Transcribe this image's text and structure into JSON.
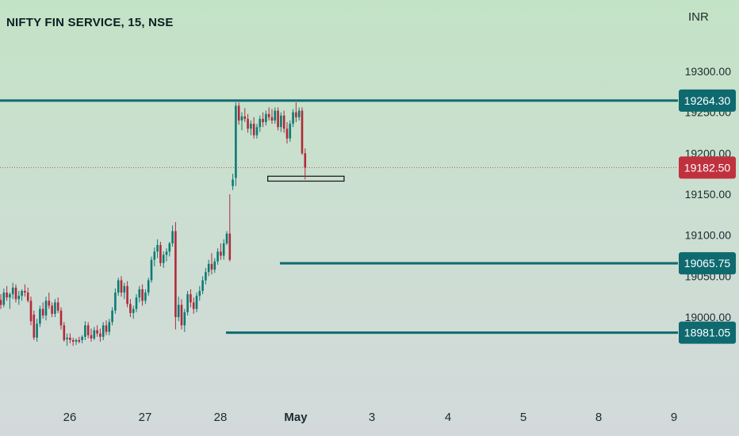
{
  "header": {
    "title": "NIFTY FIN SERVICE, 15, NSE",
    "currency": "INR"
  },
  "colors": {
    "line": "#0e6a6f",
    "up": "#0e7a74",
    "down": "#b02a3a",
    "last_price": "#c0313e"
  },
  "chart_data": {
    "type": "candlestick",
    "title": "NIFTY FIN SERVICE, 15, NSE",
    "ylabel": "INR",
    "ylim": [
      18950,
      19340
    ],
    "y_ticks": [
      "19300.00",
      "19250.00",
      "19200.00",
      "19150.00",
      "19100.00",
      "19050.00",
      "19000.00"
    ],
    "x_ticks": [
      "26",
      "27",
      "28",
      "May",
      "3",
      "4",
      "5",
      "8",
      "9"
    ],
    "last_price": {
      "label": "19182.50",
      "value": 19182.5
    },
    "levels": [
      {
        "label": "19264.30",
        "value": 19264.3
      },
      {
        "label": "19065.75",
        "value": 19065.75
      },
      {
        "label": "18981.05",
        "value": 18981.05
      }
    ],
    "zone": {
      "low": 19166,
      "high": 19172,
      "from_day": 3.62,
      "to_day": 4.63
    },
    "candles": [
      [
        19021,
        19028,
        19010,
        19015
      ],
      [
        19015,
        19035,
        19012,
        19030
      ],
      [
        19030,
        19038,
        19020,
        19024
      ],
      [
        19024,
        19030,
        19010,
        19028
      ],
      [
        19028,
        19042,
        19022,
        19036
      ],
      [
        19036,
        19040,
        19018,
        19022
      ],
      [
        19022,
        19032,
        19015,
        19026
      ],
      [
        19026,
        19034,
        19020,
        19032
      ],
      [
        19032,
        19040,
        19025,
        19030
      ],
      [
        19030,
        19036,
        19018,
        19020
      ],
      [
        19020,
        19025,
        18990,
        18995
      ],
      [
        19003,
        19008,
        18972,
        18975
      ],
      [
        18975,
        18998,
        18970,
        18992
      ],
      [
        18992,
        19014,
        18988,
        19010
      ],
      [
        19010,
        19018,
        18998,
        19002
      ],
      [
        19002,
        19025,
        18996,
        19020
      ],
      [
        19020,
        19030,
        19010,
        19014
      ],
      [
        19014,
        19018,
        19000,
        19004
      ],
      [
        19004,
        19022,
        19000,
        19018
      ],
      [
        19018,
        19024,
        19005,
        19008
      ],
      [
        19008,
        19012,
        18985,
        18990
      ],
      [
        18990,
        18994,
        18970,
        18972
      ],
      [
        18973,
        18980,
        18965,
        18975
      ],
      [
        18975,
        18980,
        18968,
        18972
      ],
      [
        18972,
        18975,
        18965,
        18970
      ],
      [
        18970,
        18974,
        18966,
        18972
      ],
      [
        18972,
        18976,
        18968,
        18970
      ],
      [
        18972,
        18978,
        18968,
        18976
      ],
      [
        18976,
        18995,
        18972,
        18990
      ],
      [
        18990,
        18994,
        18974,
        18978
      ],
      [
        18978,
        18986,
        18970,
        18974
      ],
      [
        18974,
        18988,
        18972,
        18984
      ],
      [
        18984,
        18990,
        18976,
        18980
      ],
      [
        18980,
        18986,
        18970,
        18976
      ],
      [
        18976,
        18994,
        18972,
        18990
      ],
      [
        18990,
        18996,
        18978,
        18982
      ],
      [
        18982,
        18998,
        18978,
        18994
      ],
      [
        18994,
        19012,
        18990,
        19008
      ],
      [
        19008,
        19035,
        19004,
        19030
      ],
      [
        19030,
        19048,
        19026,
        19045
      ],
      [
        19045,
        19050,
        19025,
        19030
      ],
      [
        19030,
        19042,
        19022,
        19038
      ],
      [
        19038,
        19044,
        19012,
        19016
      ],
      [
        19016,
        19022,
        19000,
        19005
      ],
      [
        19005,
        19014,
        18998,
        19010
      ],
      [
        19010,
        19028,
        19006,
        19024
      ],
      [
        19024,
        19038,
        19018,
        19034
      ],
      [
        19034,
        19040,
        19014,
        19020
      ],
      [
        19020,
        19034,
        19016,
        19030
      ],
      [
        19030,
        19048,
        19026,
        19045
      ],
      [
        19045,
        19074,
        19042,
        19070
      ],
      [
        19070,
        19085,
        19062,
        19080
      ],
      [
        19080,
        19095,
        19072,
        19088
      ],
      [
        19088,
        19092,
        19062,
        19066
      ],
      [
        19066,
        19080,
        19060,
        19076
      ],
      [
        19076,
        19084,
        19068,
        19080
      ],
      [
        19080,
        19092,
        19074,
        19090
      ],
      [
        19090,
        19112,
        19086,
        19105
      ],
      [
        19105,
        19116,
        18985,
        19000
      ],
      [
        19000,
        19025,
        18995,
        19015
      ],
      [
        19015,
        19022,
        18985,
        18990
      ],
      [
        18990,
        19010,
        18982,
        19006
      ],
      [
        19006,
        19032,
        19002,
        19028
      ],
      [
        19028,
        19034,
        19012,
        19018
      ],
      [
        19018,
        19024,
        19004,
        19010
      ],
      [
        19010,
        19030,
        19006,
        19026
      ],
      [
        19026,
        19038,
        19020,
        19032
      ],
      [
        19032,
        19050,
        19028,
        19045
      ],
      [
        19045,
        19060,
        19040,
        19055
      ],
      [
        19055,
        19070,
        19050,
        19065
      ],
      [
        19065,
        19078,
        19052,
        19058
      ],
      [
        19058,
        19072,
        19054,
        19068
      ],
      [
        19068,
        19084,
        19064,
        19080
      ],
      [
        19080,
        19090,
        19070,
        19075
      ],
      [
        19075,
        19095,
        19070,
        19090
      ],
      [
        19090,
        19105,
        19088,
        19102
      ],
      [
        19102,
        19150,
        19068,
        19070
      ],
      [
        19160,
        19175,
        19155,
        19168
      ],
      [
        19170,
        19262,
        19160,
        19258
      ],
      [
        19258,
        19262,
        19235,
        19240
      ],
      [
        19240,
        19250,
        19228,
        19245
      ],
      [
        19245,
        19255,
        19238,
        19242
      ],
      [
        19242,
        19248,
        19225,
        19230
      ],
      [
        19230,
        19240,
        19222,
        19236
      ],
      [
        19236,
        19244,
        19218,
        19222
      ],
      [
        19222,
        19236,
        19218,
        19232
      ],
      [
        19232,
        19246,
        19226,
        19242
      ],
      [
        19242,
        19250,
        19232,
        19238
      ],
      [
        19238,
        19252,
        19234,
        19248
      ],
      [
        19248,
        19256,
        19240,
        19244
      ],
      [
        19244,
        19254,
        19236,
        19240
      ],
      [
        19240,
        19256,
        19236,
        19252
      ],
      [
        19252,
        19256,
        19228,
        19232
      ],
      [
        19232,
        19250,
        19226,
        19246
      ],
      [
        19246,
        19252,
        19225,
        19230
      ],
      [
        19230,
        19238,
        19212,
        19218
      ],
      [
        19218,
        19240,
        19214,
        19236
      ],
      [
        19236,
        19254,
        19232,
        19250
      ],
      [
        19250,
        19262,
        19238,
        19244
      ],
      [
        19244,
        19256,
        19240,
        19252
      ],
      [
        19252,
        19256,
        19198,
        19200
      ],
      [
        19200,
        19206,
        19168,
        19182.5
      ]
    ]
  }
}
